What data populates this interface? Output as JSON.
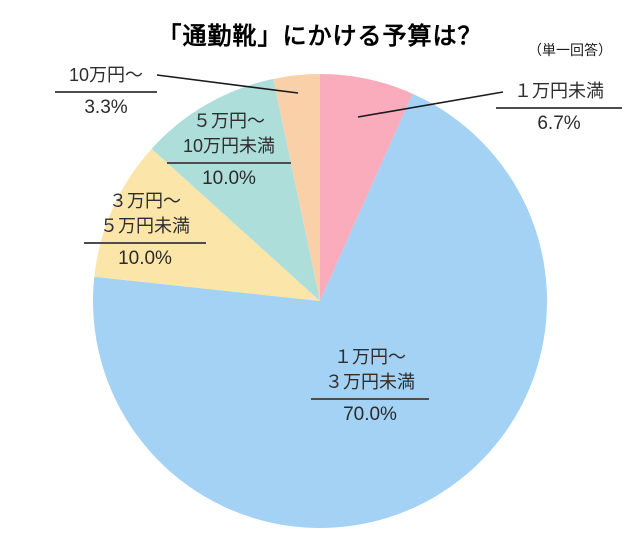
{
  "header": {
    "title": "「通勤靴」にかける予算は？",
    "note": "（単一回答）"
  },
  "chart_data": {
    "type": "pie",
    "title": "「通勤靴」にかける予算は？",
    "subtitle": "（単一回答）",
    "unit": "%",
    "start_angle_deg": 0,
    "direction": "clockwise",
    "legend_position": "none",
    "categories": [
      "１万円未満",
      "１万円〜３万円未満",
      "３万円〜５万円未満",
      "５万円〜10万円未満",
      "10万円〜"
    ],
    "values": [
      6.7,
      70.0,
      10.0,
      10.0,
      3.3
    ],
    "slices": [
      {
        "label": "１万円未満",
        "lines": [
          "１万円未満"
        ],
        "pct": "6.7%",
        "value": 6.7,
        "color": "#FAACBC"
      },
      {
        "label": "１万円〜３万円未満",
        "lines": [
          "１万円〜",
          "３万円未満"
        ],
        "pct": "70.0%",
        "value": 70.0,
        "color": "#A3D2F5"
      },
      {
        "label": "３万円〜５万円未満",
        "lines": [
          "３万円〜",
          "５万円未満"
        ],
        "pct": "10.0%",
        "value": 10.0,
        "color": "#FCE5A9"
      },
      {
        "label": "５万円〜10万円未満",
        "lines": [
          "５万円〜",
          "10万円未満"
        ],
        "pct": "10.0%",
        "value": 10.0,
        "color": "#ADDEDA"
      },
      {
        "label": "10万円〜",
        "lines": [
          "10万円〜"
        ],
        "pct": "3.3%",
        "value": 3.3,
        "color": "#FAD0A8"
      }
    ]
  }
}
